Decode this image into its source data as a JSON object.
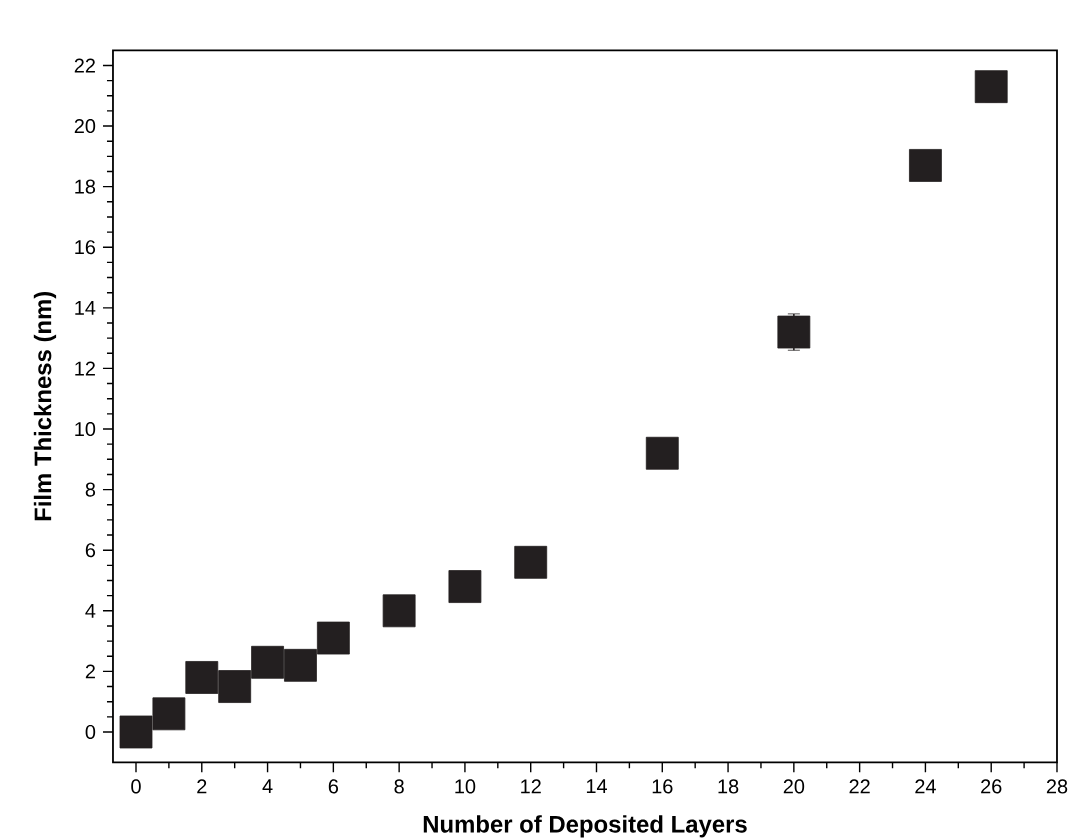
{
  "chart_data": {
    "type": "scatter",
    "xlabel": "Number of Deposited Layers",
    "ylabel": "Film Thickness (nm)",
    "x": [
      0,
      1,
      2,
      3,
      4,
      5,
      6,
      8,
      10,
      12,
      16,
      20,
      24,
      26
    ],
    "values": [
      0,
      0.6,
      1.8,
      1.5,
      2.3,
      2.2,
      3.1,
      4.0,
      4.8,
      5.6,
      9.2,
      13.2,
      18.7,
      21.3
    ],
    "errors": [
      null,
      null,
      null,
      null,
      null,
      null,
      null,
      null,
      null,
      null,
      null,
      0.6,
      null,
      0.5
    ],
    "color": "#231f20",
    "marker": "square",
    "xlim": [
      -0.7,
      28
    ],
    "ylim": [
      -1,
      22.5
    ],
    "xticks": [
      0,
      2,
      4,
      6,
      8,
      10,
      12,
      14,
      16,
      18,
      20,
      22,
      24,
      26,
      28
    ],
    "yticks": [
      0,
      2,
      4,
      6,
      8,
      10,
      12,
      14,
      16,
      18,
      20,
      22
    ]
  }
}
